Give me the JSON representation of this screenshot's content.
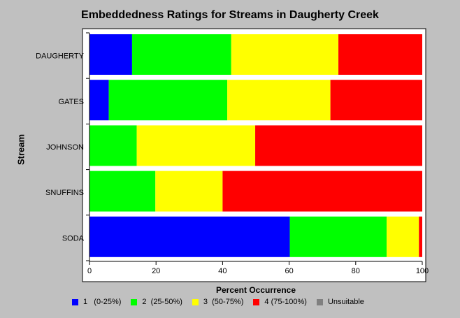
{
  "chart_data": {
    "type": "bar",
    "orientation": "horizontal",
    "stacked": true,
    "title": "Embeddedness Ratings for Streams in Daugherty Creek",
    "xlabel": "Percent Occurrence",
    "ylabel": "Stream",
    "xlim": [
      0,
      100
    ],
    "xticks": [
      0,
      20,
      40,
      60,
      80,
      100
    ],
    "categories": [
      "DAUGHERTY",
      "GATES",
      "JOHNSON",
      "SNUFFINS",
      "SODA"
    ],
    "series": [
      {
        "name": "1   (0-25%)",
        "color": "#0000ff",
        "values": [
          12.8,
          5.8,
          0,
          0,
          60.2
        ]
      },
      {
        "name": "2  (25-50%)",
        "color": "#00ff00",
        "values": [
          29.8,
          35.6,
          14.2,
          19.8,
          29.1
        ]
      },
      {
        "name": "3  (50-75%)",
        "color": "#ffff00",
        "values": [
          32.2,
          31.0,
          35.6,
          20.2,
          9.7
        ]
      },
      {
        "name": "4 (75-100%)",
        "color": "#ff0000",
        "values": [
          25.2,
          27.6,
          50.2,
          60.0,
          1.0
        ]
      },
      {
        "name": "Unsuitable",
        "color": "#808080",
        "values": [
          0,
          0,
          0,
          0,
          0
        ]
      }
    ],
    "grid": false,
    "legend_position": "bottom"
  },
  "colors": {
    "plot_background": "#ffffff",
    "page_background": "#c0c0c0"
  }
}
